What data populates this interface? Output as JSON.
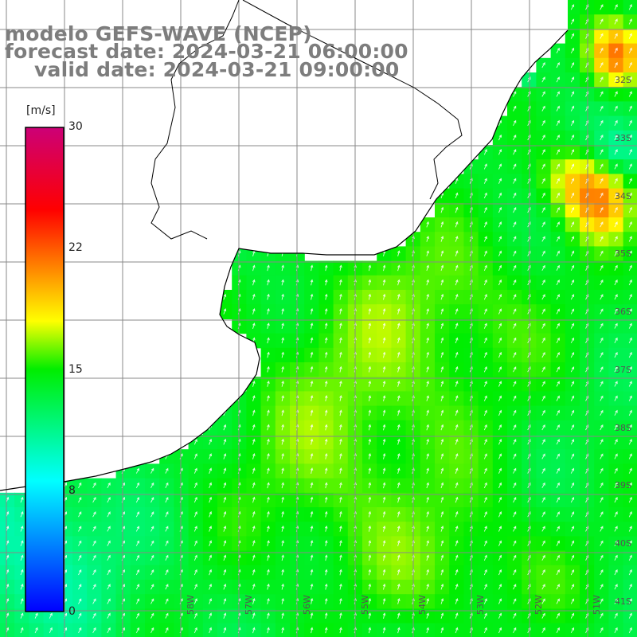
{
  "title": {
    "line1": "modelo GEFS-WAVE (NCEP)",
    "line2": "forecast date: 2024-03-21 06:00:00",
    "line3": "valid date: 2024-03-21 09:00:00"
  },
  "colorbar": {
    "unit": "[m/s]",
    "ticks": [
      "30",
      "22",
      "15",
      "8",
      "0"
    ],
    "min": 0,
    "max": 30,
    "colors": [
      "#0000ff",
      "#00ffff",
      "#00ee00",
      "#ffff00",
      "#ff0000",
      "#cc0077"
    ]
  },
  "map": {
    "lat_labels": [
      "32S",
      "33S",
      "34S",
      "35S",
      "36S",
      "37S",
      "38S",
      "39S",
      "40S",
      "41S"
    ],
    "lon_labels": [
      "58W",
      "57W",
      "56W",
      "55W",
      "54W",
      "53W",
      "52W",
      "51W"
    ],
    "land_color": "#ffffff",
    "grid_color": "#888888",
    "arrow_color": "#ffffff"
  }
}
